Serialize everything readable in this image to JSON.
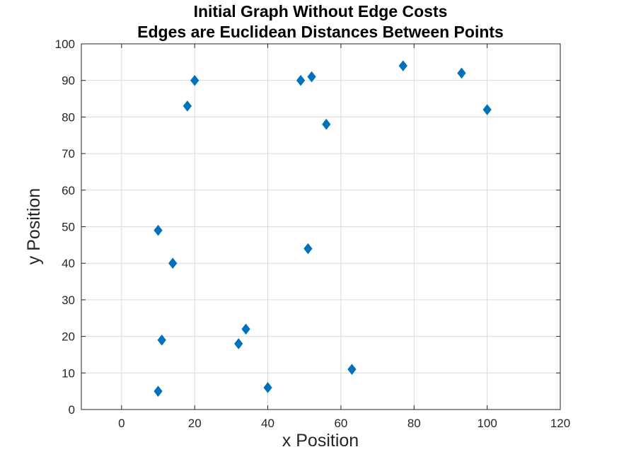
{
  "chart_data": {
    "type": "scatter",
    "title": [
      "Initial Graph Without Edge Costs",
      "Edges are Euclidean Distances Between Points"
    ],
    "xlabel": "x Position",
    "ylabel": "y Position",
    "xlim": [
      -11,
      120
    ],
    "ylim": [
      0,
      100
    ],
    "xticks": [
      0,
      20,
      40,
      60,
      80,
      100,
      120
    ],
    "yticks": [
      0,
      10,
      20,
      30,
      40,
      50,
      60,
      70,
      80,
      90,
      100
    ],
    "grid": true,
    "marker": "diamond",
    "color": "#0072BD",
    "points": [
      {
        "x": 20,
        "y": 90
      },
      {
        "x": 18,
        "y": 83
      },
      {
        "x": 49,
        "y": 90
      },
      {
        "x": 52,
        "y": 91
      },
      {
        "x": 56,
        "y": 78
      },
      {
        "x": 77,
        "y": 94
      },
      {
        "x": 93,
        "y": 92
      },
      {
        "x": 100,
        "y": 82
      },
      {
        "x": 10,
        "y": 49
      },
      {
        "x": 14,
        "y": 40
      },
      {
        "x": 51,
        "y": 44
      },
      {
        "x": 34,
        "y": 22
      },
      {
        "x": 32,
        "y": 18
      },
      {
        "x": 11,
        "y": 19
      },
      {
        "x": 10,
        "y": 5
      },
      {
        "x": 40,
        "y": 6
      },
      {
        "x": 63,
        "y": 11
      }
    ]
  }
}
